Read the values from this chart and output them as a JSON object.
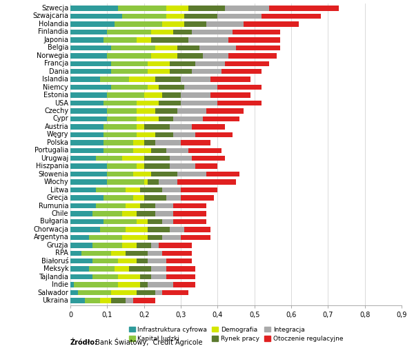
{
  "countries": [
    "Szwecja",
    "Szwajcaria",
    "Holandia",
    "Finlandia",
    "Japonia",
    "Belgia",
    "Norwegia",
    "Francja",
    "Dania",
    "Islandia",
    "Niemcy",
    "Estonia",
    "USA",
    "Czechy",
    "Cypr",
    "Austria",
    "Węgry",
    "Polska",
    "Portugalia",
    "Urugwaj",
    "Hiszpania",
    "Słowenia",
    "Włochy",
    "Litwa",
    "Grecja",
    "Rumunia",
    "Chile",
    "Bułgaria",
    "Chorwacja",
    "Argentyna",
    "Gruzja",
    "RPA",
    "Białoruś",
    "Meksyk",
    "Tajlandia",
    "Indie",
    "Salwador",
    "Ukraina"
  ],
  "segment_names": [
    "Infrastruktura cyfrowa",
    "Kapitał ludzki",
    "Demografia",
    "Rynek pracy",
    "Integracja",
    "Otoczenie regulacyjne"
  ],
  "segment_colors": [
    "#2E9B9B",
    "#8DC63F",
    "#D4E600",
    "#5B7A2E",
    "#AAAAAA",
    "#E02020"
  ],
  "segment_values": [
    [
      0.13,
      0.14,
      0.12,
      0.1,
      0.09,
      0.11,
      0.1,
      0.11,
      0.11,
      0.08,
      0.11,
      0.1,
      0.09,
      0.1,
      0.1,
      0.09,
      0.09,
      0.09,
      0.09,
      0.07,
      0.1,
      0.1,
      0.1,
      0.07,
      0.09,
      0.07,
      0.06,
      0.09,
      0.08,
      0.05,
      0.06,
      0.03,
      0.06,
      0.05,
      0.06,
      0.01,
      0.02,
      0.04
    ],
    [
      0.13,
      0.12,
      0.13,
      0.12,
      0.09,
      0.12,
      0.12,
      0.1,
      0.1,
      0.08,
      0.1,
      0.1,
      0.09,
      0.08,
      0.08,
      0.09,
      0.09,
      0.08,
      0.08,
      0.07,
      0.08,
      0.07,
      0.1,
      0.08,
      0.08,
      0.08,
      0.08,
      0.09,
      0.07,
      0.09,
      0.08,
      0.08,
      0.07,
      0.07,
      0.07,
      0.12,
      0.09,
      0.04
    ],
    [
      0.06,
      0.05,
      0.06,
      0.06,
      0.04,
      0.06,
      0.07,
      0.06,
      0.06,
      0.07,
      0.03,
      0.05,
      0.06,
      0.05,
      0.06,
      0.02,
      0.05,
      0.03,
      0.05,
      0.06,
      0.02,
      0.05,
      0.01,
      0.04,
      0.03,
      0.04,
      0.04,
      0.03,
      0.06,
      0.07,
      0.04,
      0.04,
      0.05,
      0.04,
      0.06,
      0.06,
      0.07,
      0.03
    ],
    [
      0.1,
      0.09,
      0.06,
      0.05,
      0.1,
      0.06,
      0.07,
      0.07,
      0.06,
      0.07,
      0.07,
      0.05,
      0.06,
      0.06,
      0.04,
      0.07,
      0.05,
      0.03,
      0.04,
      0.07,
      0.07,
      0.07,
      0.03,
      0.06,
      0.06,
      0.04,
      0.05,
      0.04,
      0.06,
      0.04,
      0.04,
      0.06,
      0.03,
      0.06,
      0.03,
      0.02,
      0.05,
      0.04
    ],
    [
      0.12,
      0.12,
      0.1,
      0.11,
      0.11,
      0.1,
      0.07,
      0.08,
      0.08,
      0.08,
      0.09,
      0.08,
      0.1,
      0.08,
      0.08,
      0.06,
      0.06,
      0.07,
      0.06,
      0.06,
      0.07,
      0.08,
      0.05,
      0.05,
      0.04,
      0.05,
      0.05,
      0.03,
      0.04,
      0.05,
      0.02,
      0.04,
      0.05,
      0.04,
      0.04,
      0.07,
      0.02,
      0.02
    ],
    [
      0.19,
      0.16,
      0.15,
      0.13,
      0.14,
      0.12,
      0.13,
      0.12,
      0.11,
      0.11,
      0.12,
      0.11,
      0.12,
      0.1,
      0.1,
      0.09,
      0.1,
      0.08,
      0.09,
      0.09,
      0.06,
      0.09,
      0.16,
      0.1,
      0.09,
      0.09,
      0.09,
      0.09,
      0.07,
      0.08,
      0.09,
      0.08,
      0.07,
      0.08,
      0.08,
      0.06,
      0.07,
      0.06
    ]
  ],
  "xlim": [
    0,
    0.9
  ],
  "xticks": [
    0,
    0.1,
    0.2,
    0.3,
    0.4,
    0.5,
    0.6,
    0.7,
    0.8,
    0.9
  ],
  "xtick_labels": [
    "0",
    "0,1",
    "0,2",
    "0,3",
    "0,4",
    "0,5",
    "0,6",
    "0,7",
    "0,8",
    "0,9"
  ],
  "source_bold": "Źródło:",
  "source_normal": " Bank Światowy,  Credit Agricole",
  "bar_height": 0.65,
  "figsize": [
    6.0,
    5.15
  ],
  "dpi": 100
}
